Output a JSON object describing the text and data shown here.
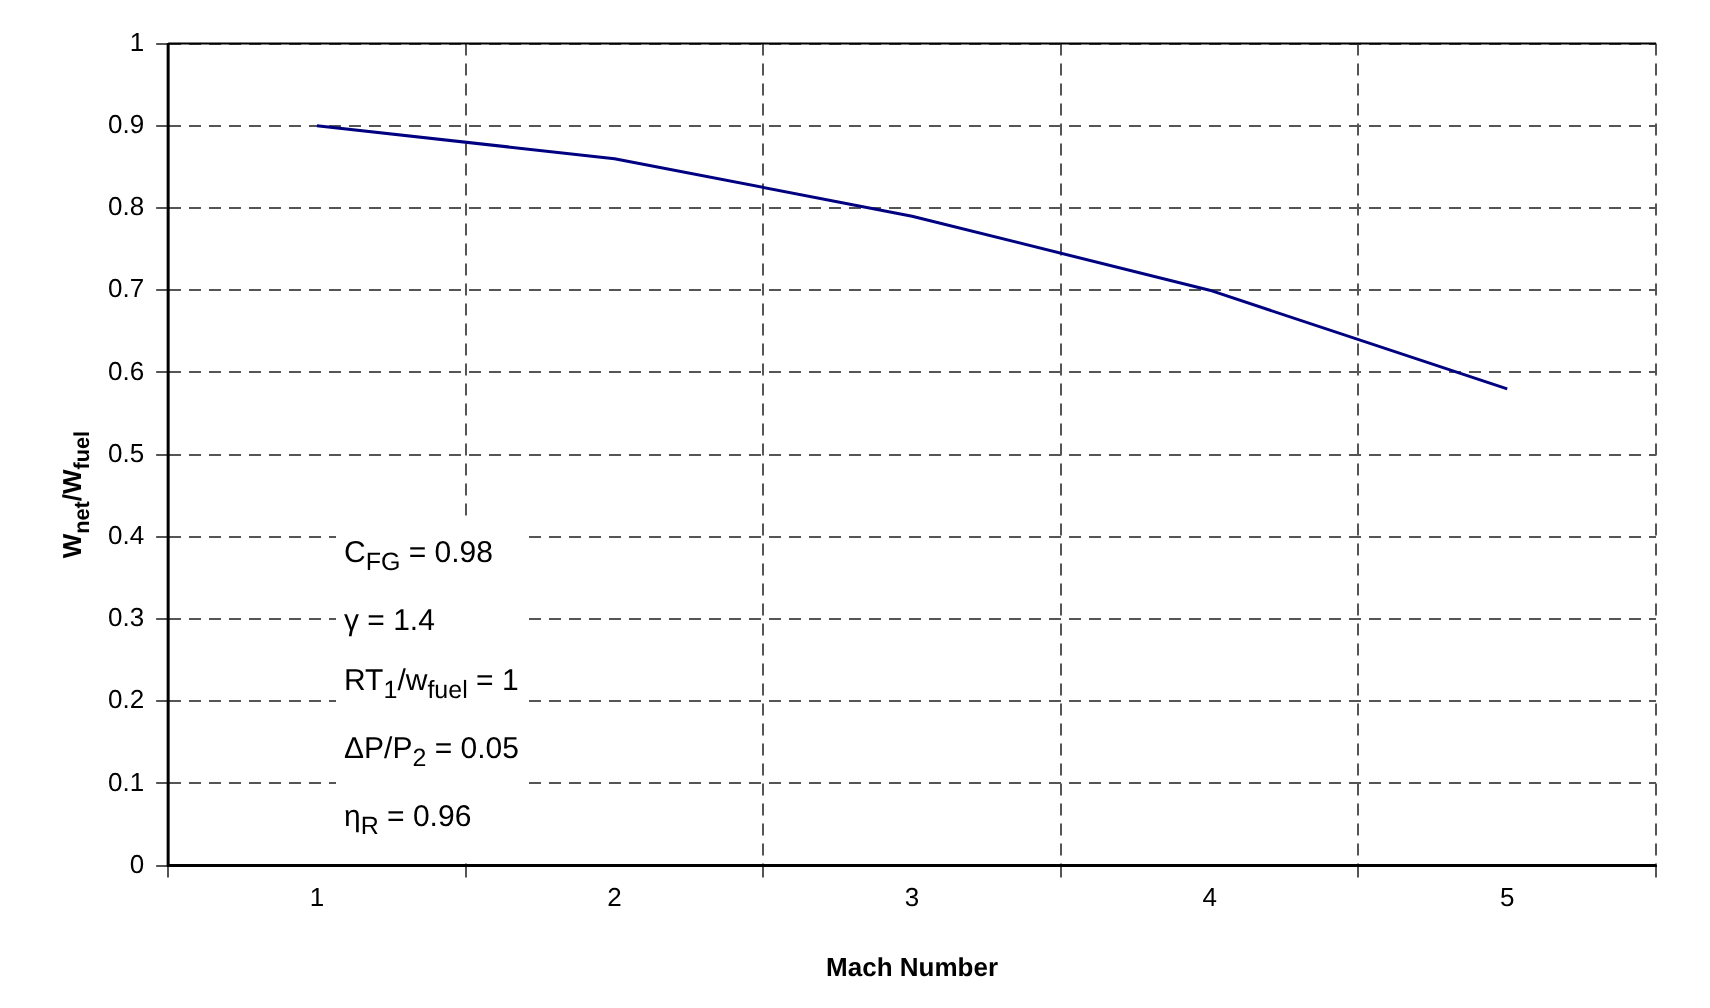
{
  "chart_data": {
    "type": "line",
    "xlabel": "Mach Number",
    "ylabel": "W$_{net}$/W$_{fuel}$",
    "categories": [
      "1",
      "2",
      "3",
      "4",
      "5"
    ],
    "series": [
      {
        "color": "#000080",
        "values": [
          0.9,
          0.86,
          0.79,
          0.7,
          0.58
        ]
      }
    ],
    "ylim": [
      0,
      1
    ],
    "yticks": [
      0,
      0.1,
      0.2,
      0.3,
      0.4,
      0.5,
      0.6,
      0.7,
      0.8,
      0.9,
      1
    ],
    "grid": true,
    "legend": false,
    "marker": "none",
    "line_style": "solid",
    "annotations": [
      "C$_{FG}$ = 0.98",
      "γ = 1.4",
      "RT$_{1}$/w$_{fuel}$ = 1",
      "ΔP/P$_{2}$ = 0.05",
      "η$_{R}$ = 0.96"
    ]
  }
}
